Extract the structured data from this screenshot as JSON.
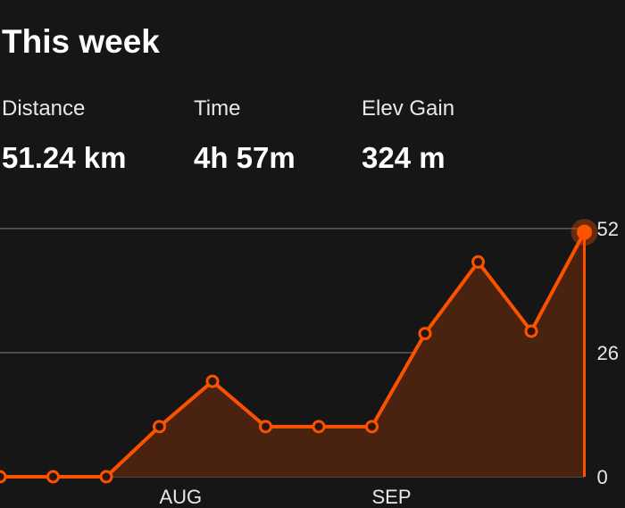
{
  "header": {
    "title": "This week"
  },
  "stats": [
    {
      "label": "Distance",
      "value": "51.24 km"
    },
    {
      "label": "Time",
      "value": "4h 57m"
    },
    {
      "label": "Elev Gain",
      "value": "324 m"
    }
  ],
  "chart_data": {
    "type": "area",
    "categories": [
      null,
      null,
      null,
      "AUG",
      null,
      null,
      null,
      "SEP",
      null,
      null,
      null,
      null
    ],
    "values": [
      0,
      0,
      0,
      10.5,
      20,
      10.5,
      10.5,
      10.5,
      30,
      45,
      30.5,
      51.24
    ],
    "color": "#fc5200",
    "fill": "#4a2210",
    "ylim": [
      0,
      52
    ],
    "yticks": [
      0,
      26,
      52
    ],
    "grid": true
  }
}
